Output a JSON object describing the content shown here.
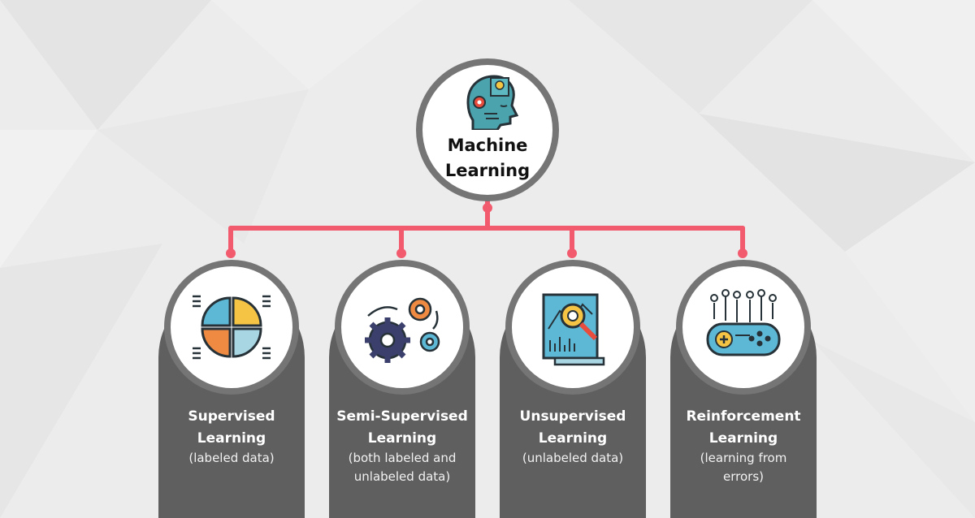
{
  "colors": {
    "background": "#ececec",
    "ring": "#757575",
    "pillar": "#5f5f5f",
    "connector": "#f25a6e"
  },
  "root": {
    "title": "Machine\nLearning",
    "icon": "brain-puzzle-head-icon"
  },
  "categories": [
    {
      "title": "Supervised\nLearning",
      "subtitle": "(labeled data)",
      "icon": "quadrant-pie-chart-icon"
    },
    {
      "title": "Semi-Supervised\nLearning",
      "subtitle": "(both labeled and\nunlabeled data)",
      "icon": "gears-icon"
    },
    {
      "title": "Unsupervised\nLearning",
      "subtitle": "(unlabeled data)",
      "icon": "data-analysis-magnifier-icon"
    },
    {
      "title": "Reinforcement\nLearning",
      "subtitle": "(learning from\nerrors)",
      "icon": "game-controller-icon"
    }
  ]
}
